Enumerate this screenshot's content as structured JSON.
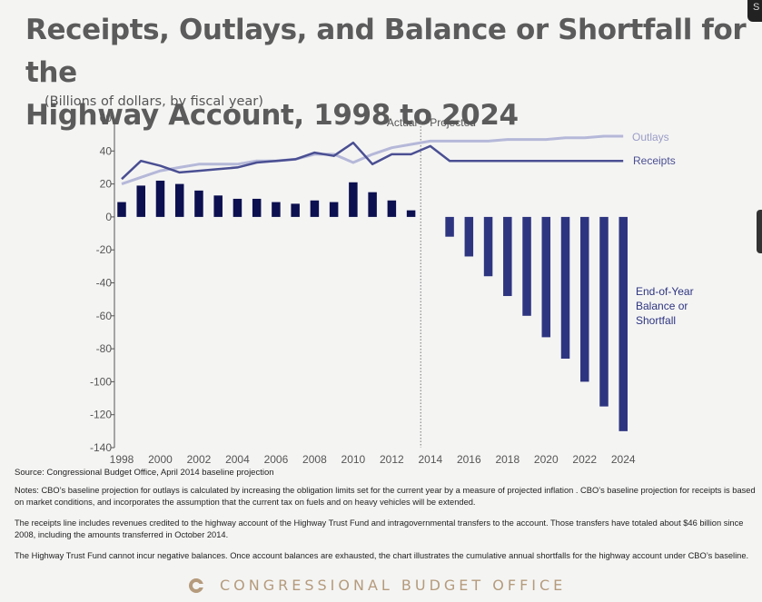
{
  "slide": {
    "title_line1": "Receipts, Outlays, and Balance or Shortfall for the",
    "title_line2": "Highway Account, 1998 to 2024",
    "subtitle": "(Billions of dollars, by fiscal year)",
    "source": "Source: Congressional Budget Office, April 2014 baseline projection",
    "notes": [
      "Notes:  CBO’s  baseline projection for outlays is calculated by increasing the obligation limits set for the current year by a measure of projected inflation .  CBO’s baseline projection for receipts is based on market conditions, and incorporates the assumption that the current tax on fuels and on heavy vehicles will be extended.",
      "The receipts line includes revenues credited to the highway account of the Highway Trust Fund and intragovernmental transfers to the account. Those transfers have totaled about $46 billion since 2008, including the amounts transferred in October 2014.",
      "The Highway Trust Fund cannot incur negative balances.  Once account balances are exhausted, the chart illustrates the cumulative annual shortfalls for the highway account under CBO’s baseline."
    ],
    "footer": "CONGRESSIONAL BUDGET OFFICE",
    "corner_tab": "S"
  },
  "colors": {
    "title": "#5b5b5b",
    "bars_actual": "#0c1050",
    "bars_projected": "#2e3580",
    "receipts": "#4a4f92",
    "outlays": "#b5b8d8",
    "footer": "#b59b7c"
  },
  "chart_data": {
    "type": "bar",
    "title": "Receipts, Outlays, and Balance or Shortfall for the Highway Account, 1998 to 2024",
    "ylabel": "(Billions of dollars, by fiscal year)",
    "ylim": [
      -140,
      60
    ],
    "yticks": [
      60,
      40,
      20,
      0,
      -20,
      -40,
      -60,
      -80,
      -100,
      -120,
      -140
    ],
    "xticks": [
      "1998",
      "2000",
      "2002",
      "2004",
      "2006",
      "2008",
      "2010",
      "2012",
      "2014",
      "2016",
      "2018",
      "2020",
      "2022",
      "2024"
    ],
    "actual_label": "Actual",
    "projected_label": "Projected",
    "divider_year": 2013.5,
    "years": [
      1998,
      1999,
      2000,
      2001,
      2002,
      2003,
      2004,
      2005,
      2006,
      2007,
      2008,
      2009,
      2010,
      2011,
      2012,
      2013,
      2014,
      2015,
      2016,
      2017,
      2018,
      2019,
      2020,
      2021,
      2022,
      2023,
      2024
    ],
    "series": [
      {
        "name": "End-of-Year Balance or Shortfall",
        "label_lines": [
          "End-of-Year",
          "Balance or",
          "Shortfall"
        ],
        "type": "bar",
        "values": [
          9,
          19,
          22,
          20,
          16,
          13,
          11,
          11,
          9,
          8,
          10,
          9,
          21,
          15,
          10,
          4,
          null,
          -12,
          -24,
          -36,
          -48,
          -60,
          -73,
          -86,
          -100,
          -115,
          -130
        ]
      },
      {
        "name": "Outlays",
        "type": "line",
        "values": [
          20,
          24,
          28,
          30,
          32,
          32,
          32,
          34,
          34,
          35,
          38,
          38,
          33,
          38,
          42,
          44,
          46,
          46,
          46,
          46,
          47,
          47,
          47,
          48,
          48,
          49,
          49
        ]
      },
      {
        "name": "Receipts",
        "type": "line",
        "values": [
          23,
          34,
          31,
          27,
          28,
          29,
          30,
          33,
          34,
          35,
          39,
          37,
          45,
          32,
          38,
          38,
          43,
          34,
          34,
          34,
          34,
          34,
          34,
          34,
          34,
          34,
          34
        ]
      }
    ],
    "grid": false
  }
}
